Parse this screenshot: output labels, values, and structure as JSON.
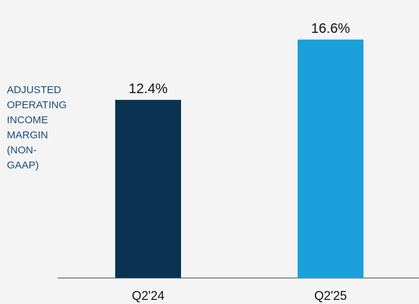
{
  "chart_data": {
    "type": "bar",
    "title": "",
    "xlabel": "",
    "ylabel": "ADJUSTED\nOPERATING\nINCOME\nMARGIN\n(NON-\nGAAP)",
    "categories": [
      "Q2'24",
      "Q2'25"
    ],
    "values": [
      12.4,
      16.6
    ],
    "value_labels": [
      "12.4%",
      "16.6%"
    ],
    "unit": "%",
    "ylim": [
      0,
      18.4
    ],
    "grid": false,
    "legend": "none",
    "bar_colors": [
      "#0a3352",
      "#1aa0db"
    ]
  },
  "colors": {
    "background": "#f4f4f4",
    "axis": "#7a7a7a",
    "ylabel_text": "#1a4b7a"
  }
}
